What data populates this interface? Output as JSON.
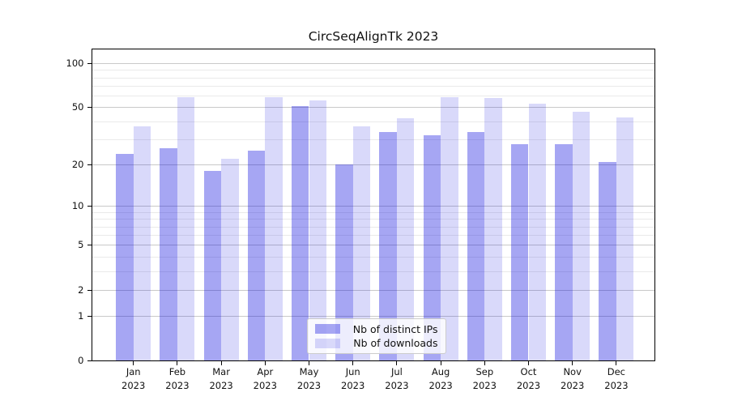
{
  "title": "CircSeqAlignTk 2023",
  "colors": {
    "bar_distinct_ips": "rgba(0,0,220,0.35)",
    "bar_downloads": "rgba(0,0,220,0.15)",
    "grid_major": "#c9c9c9",
    "grid_minor": "#eaeaea",
    "axis_line": "#000000",
    "text": "#111111",
    "legend_border": "#cccccc",
    "legend_background": "rgba(255,255,255,0.8)"
  },
  "chart_data": {
    "type": "bar",
    "title": "CircSeqAlignTk 2023",
    "xlabel": "",
    "ylabel": "",
    "categories": [
      "Jan 2023",
      "Feb 2023",
      "Mar 2023",
      "Apr 2023",
      "May 2023",
      "Jun 2023",
      "Jul 2023",
      "Aug 2023",
      "Sep 2023",
      "Oct 2023",
      "Nov 2023",
      "Dec 2023"
    ],
    "series": [
      {
        "name": "Nb of distinct IPs",
        "color": "rgba(0,0,220,0.35)",
        "values": [
          24,
          26,
          18,
          25,
          51,
          20,
          34,
          32,
          34,
          28,
          28,
          21
        ]
      },
      {
        "name": "Nb of downloads",
        "color": "rgba(0,0,220,0.15)",
        "values": [
          37,
          59,
          22,
          59,
          56,
          37,
          42,
          59,
          58,
          53,
          47,
          43
        ]
      }
    ],
    "y_scale": "symlog-log1p",
    "ylim": [
      0,
      125
    ],
    "y_major_ticks": [
      0,
      1,
      2,
      5,
      10,
      20,
      50,
      100
    ],
    "y_minor_ticks": [
      3,
      4,
      6,
      7,
      8,
      9,
      30,
      40,
      60,
      70,
      80,
      90
    ],
    "grid": "horizontal",
    "legend": {
      "entries": [
        "Nb of distinct IPs",
        "Nb of downloads"
      ],
      "position": "inside-bottom-center"
    }
  }
}
